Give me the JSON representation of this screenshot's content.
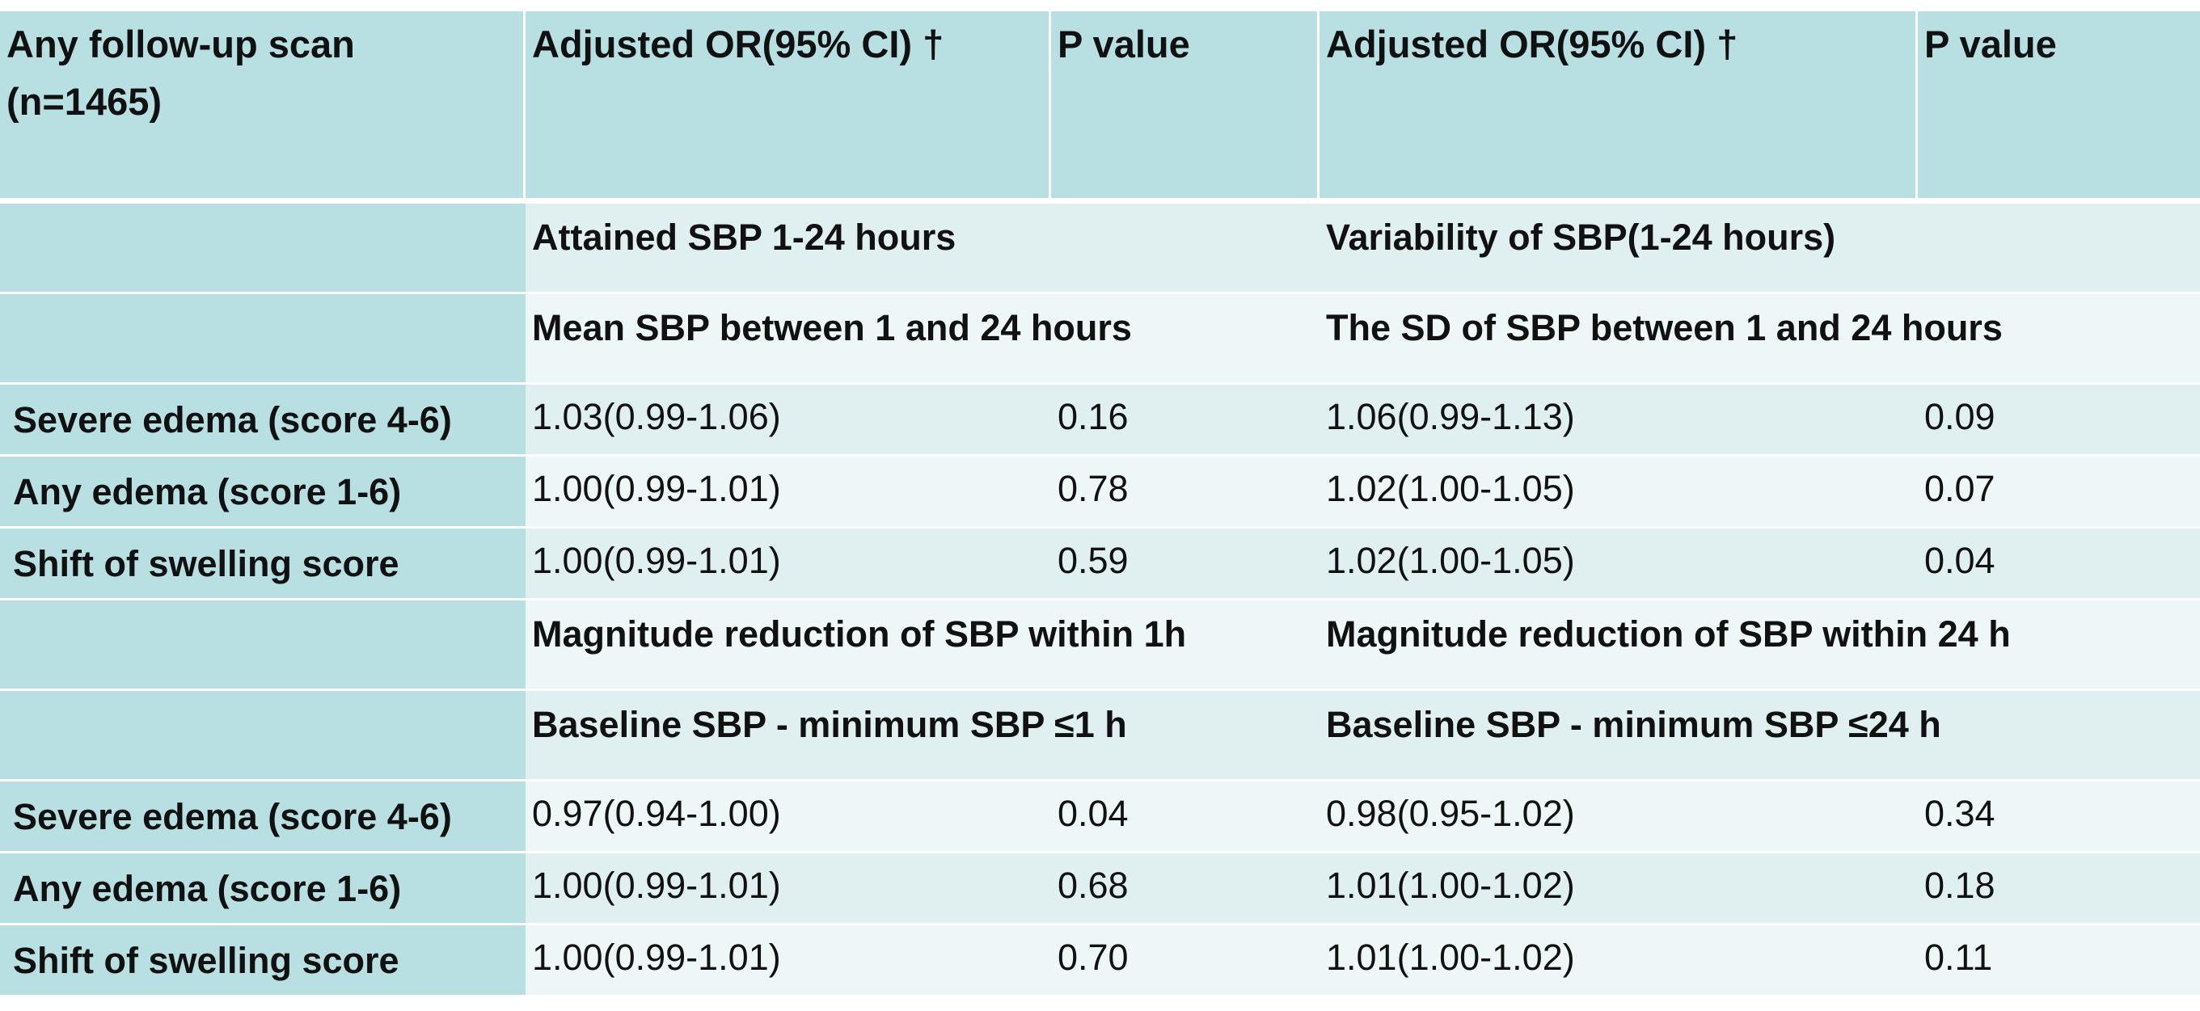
{
  "header": {
    "col0": "Any follow-up scan (n=1465)",
    "col1": "Adjusted OR(95% CI) †",
    "col2": "P value",
    "col3": "Adjusted OR(95% CI) †",
    "col4": "P value"
  },
  "blocks": [
    {
      "measure_left": "Attained SBP 1-24 hours",
      "measure_right": "Variability of SBP(1-24 hours)",
      "def_left": "Mean SBP between 1 and 24 hours",
      "def_right": "The SD of SBP between 1 and 24 hours",
      "rows": [
        {
          "label": "Severe edema (score 4-6)",
          "or1": " 1.03(0.99-1.06)",
          "p1": "0.16",
          "or2": "1.06(0.99-1.13)",
          "p2": "0.09"
        },
        {
          "label": "Any edema (score 1-6)",
          "or1": "1.00(0.99-1.01)",
          "p1": "0.78",
          "or2": "1.02(1.00-1.05)",
          "p2": "0.07"
        },
        {
          "label": "Shift of swelling score",
          "or1": "1.00(0.99-1.01)",
          "p1": "0.59",
          "or2": "1.02(1.00-1.05)",
          "p2": "0.04"
        }
      ]
    },
    {
      "measure_left": "Magnitude reduction of SBP within 1h",
      "measure_right": "Magnitude reduction of SBP within 24 h",
      "def_left": "Baseline SBP - minimum SBP ≤1 h",
      "def_right": "Baseline SBP - minimum SBP ≤24 h",
      "rows": [
        {
          "label": "Severe edema (score 4-6)",
          "or1": "0.97(0.94-1.00)",
          "p1": "0.04",
          "or2": "0.98(0.95-1.02)",
          "p2": "0.34"
        },
        {
          "label": "Any edema (score 1-6)",
          "or1": "1.00(0.99-1.01)",
          "p1": "0.68",
          "or2": "1.01(1.00-1.02)",
          "p2": "0.18"
        },
        {
          "label": "Shift of swelling score",
          "or1": "1.00(0.99-1.01)",
          "p1": "0.70",
          "or2": "1.01(1.00-1.02)",
          "p2": "0.11"
        }
      ]
    }
  ],
  "colors": {
    "header_bg": "#b8e0e3",
    "row_dark": "#e0f0f1",
    "row_light": "#eef7f8"
  }
}
